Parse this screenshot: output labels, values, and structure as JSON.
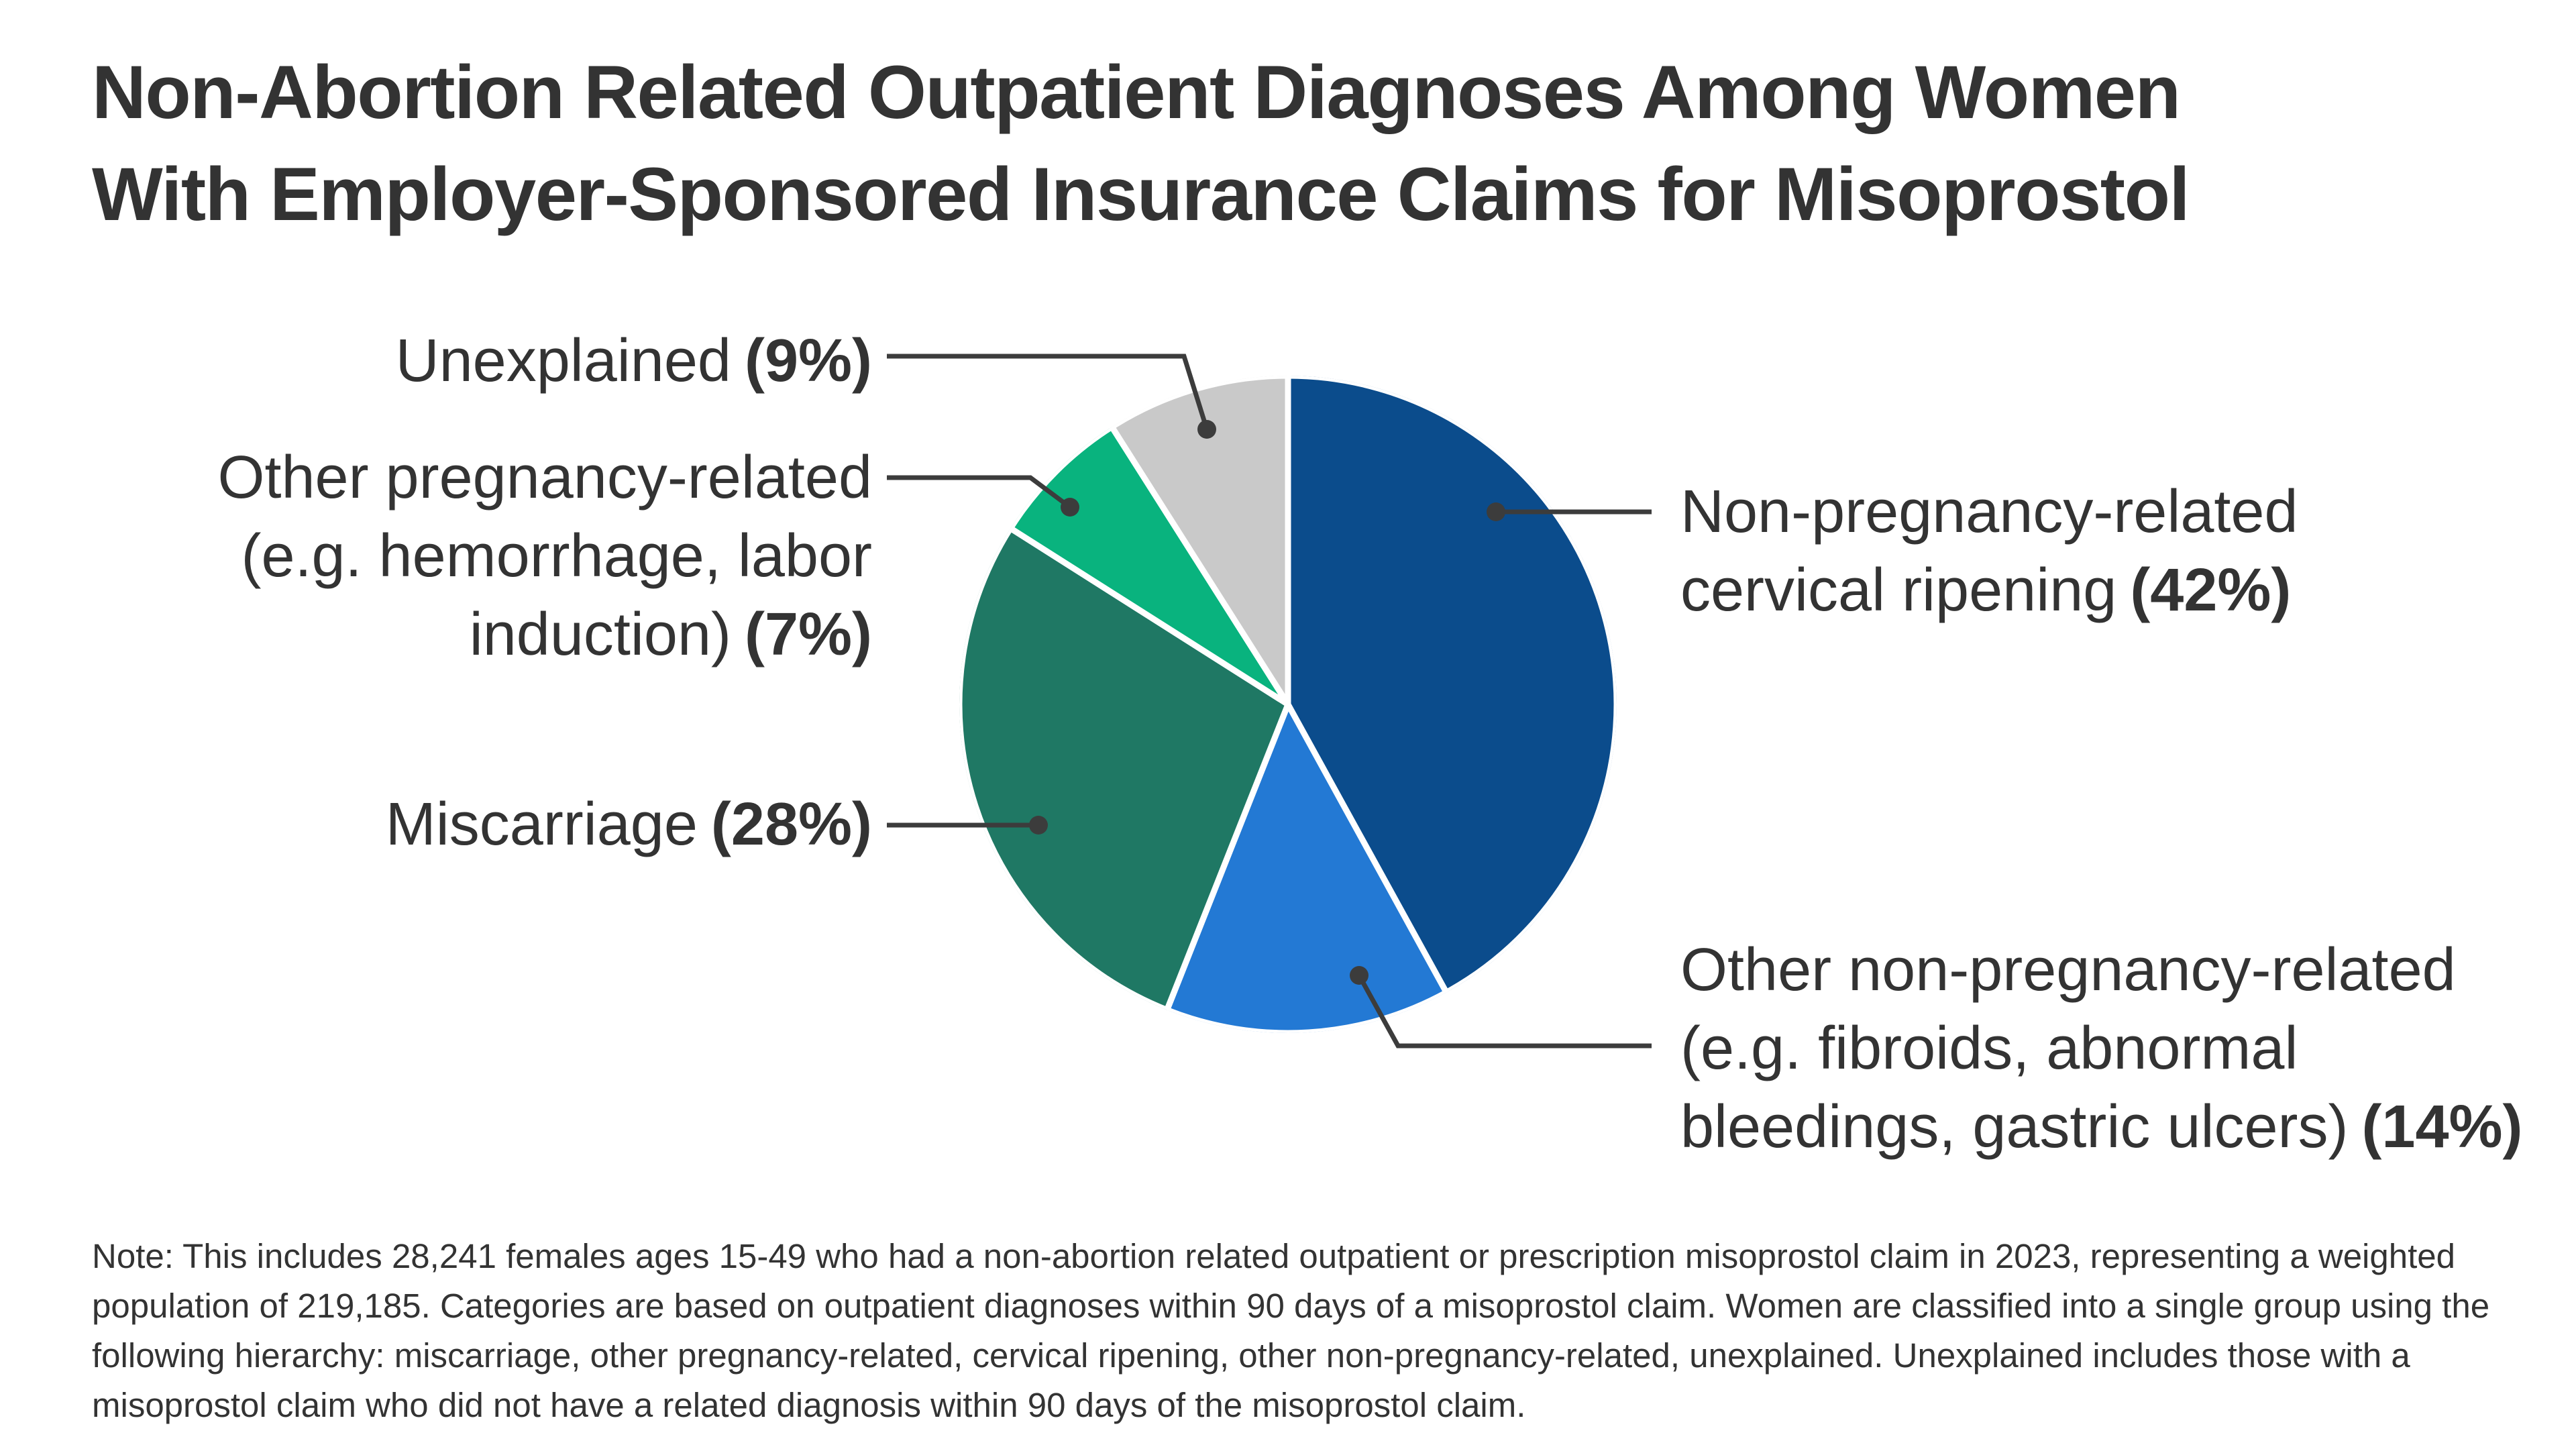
{
  "title_lines": [
    "Non-Abortion Related Outpatient Diagnoses Among Women",
    "With Employer-Sponsored Insurance Claims for Misoprostol"
  ],
  "note": "Note: This includes 28,241 females ages 15-49 who had a non-abortion related outpatient or prescription misoprostol claim in 2023, representing a weighted population of 219,185. Categories are based on outpatient diagnoses within 90 days of a misoprostol claim. Women are classified into a single group using the following hierarchy: miscarriage, other pregnancy-related, cervical ripening, other non-pregnancy-related, unexplained. Unexplained includes those with a misoprostol claim who did not have a related diagnosis within 90 days of the misoprostol claim.",
  "colors": {
    "title_text": "#333333",
    "label_text": "#333333",
    "note_text": "#333333",
    "connector": "#3C3C3C",
    "separator": "#FFFFFF",
    "background": "#FFFFFF"
  },
  "callouts": {
    "non_pregnancy": {
      "line1": "Non-pregnancy-related",
      "line2": "cervical ripening",
      "pct": "(42%)"
    },
    "other_non_pregnancy": {
      "line1": "Other non-pregnancy-related",
      "line2": "(e.g. fibroids, abnormal",
      "line3": "bleedings, gastric ulcers)",
      "pct": "(14%)"
    },
    "miscarriage": {
      "text": "Miscarriage",
      "pct": "(28%)"
    },
    "other_pregnancy": {
      "line1": "Other pregnancy-related",
      "line2": "(e.g. hemorrhage, labor",
      "line3": "induction)",
      "pct": "(7%)"
    },
    "unexplained": {
      "text": "Unexplained",
      "pct": "(9%)"
    }
  },
  "chart_data": {
    "type": "pie",
    "title": "Non-Abortion Related Outpatient Diagnoses Among Women With Employer-Sponsored Insurance Claims for Misoprostol",
    "start_angle_deg": 0,
    "direction": "clockwise",
    "donut": false,
    "legend_position": "callout-labels",
    "slices": [
      {
        "label": "Non-pregnancy-related cervical ripening",
        "value": 42,
        "color": "#0B4C8C"
      },
      {
        "label": "Other non-pregnancy-related (e.g. fibroids, abnormal bleedings, gastric ulcers)",
        "value": 14,
        "color": "#2379D4"
      },
      {
        "label": "Miscarriage",
        "value": 28,
        "color": "#1F7864"
      },
      {
        "label": "Other pregnancy-related (e.g. hemorrhage, labor induction)",
        "value": 7,
        "color": "#09B37E"
      },
      {
        "label": "Unexplained",
        "value": 9,
        "color": "#C9C9C9"
      }
    ]
  }
}
